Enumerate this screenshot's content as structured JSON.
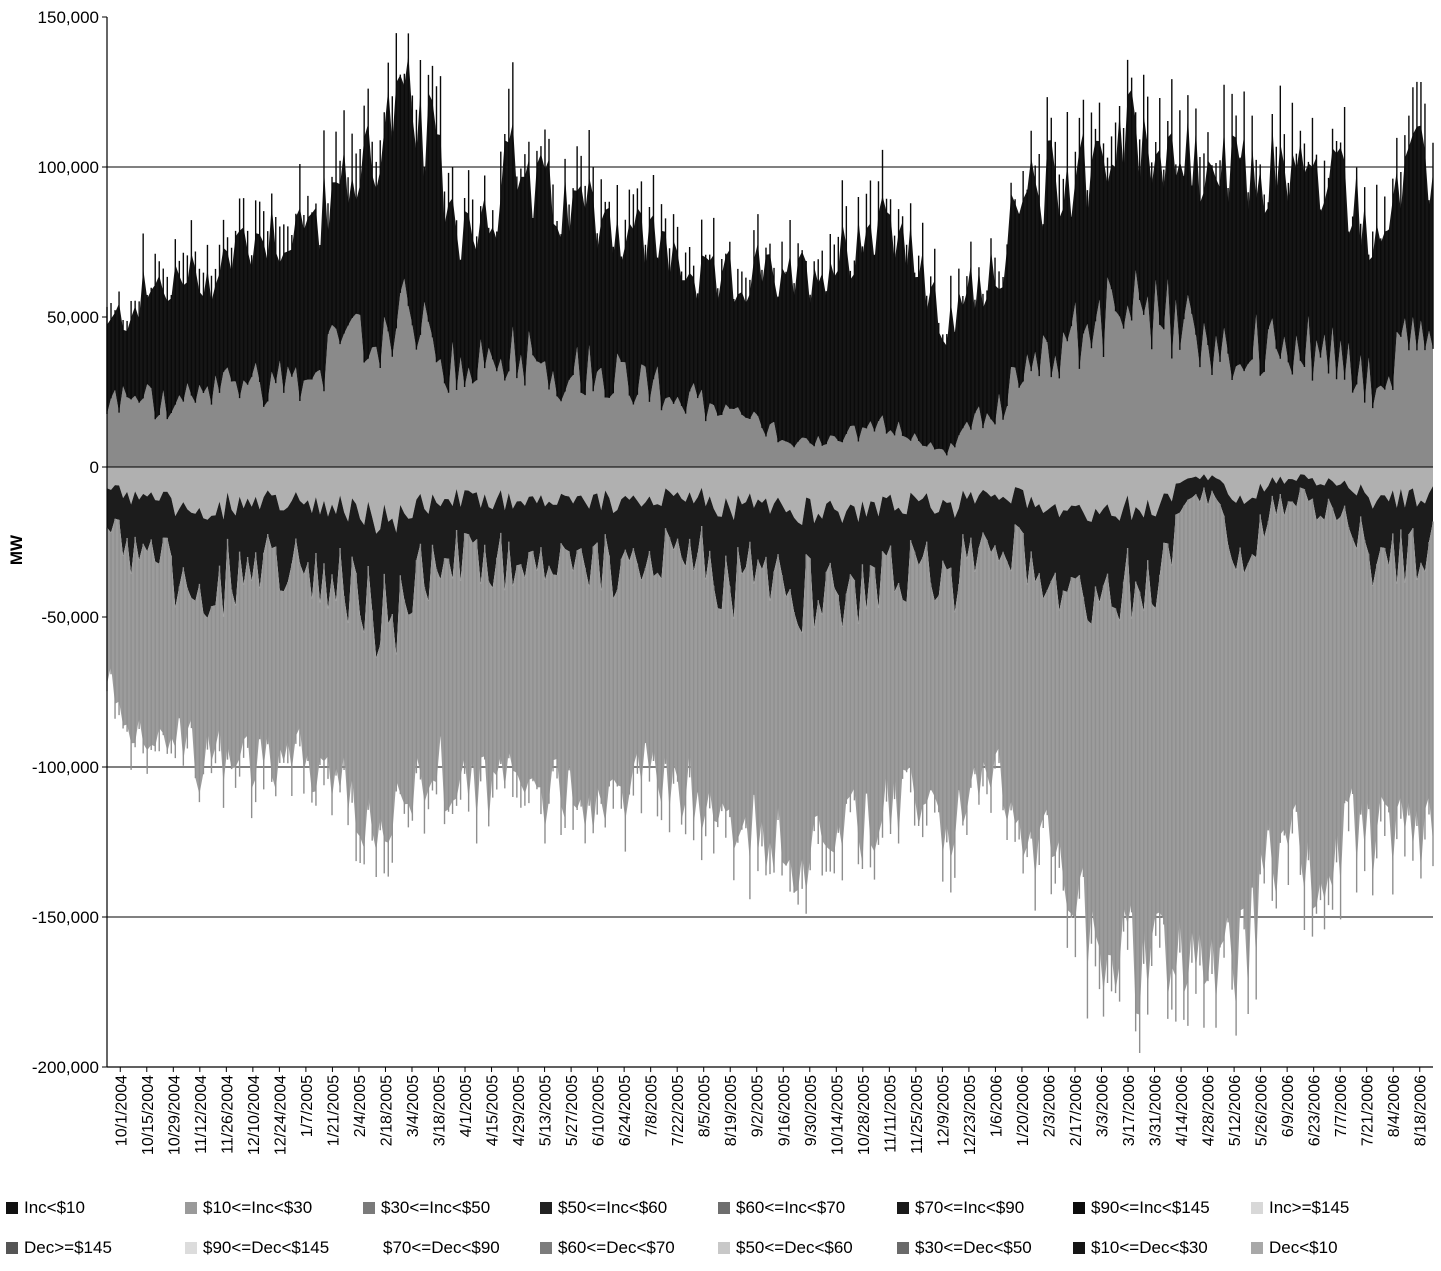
{
  "chart_data": {
    "type": "area",
    "title": "",
    "xlabel": "",
    "ylabel": "MW",
    "ylim": [
      -200000,
      150000
    ],
    "yticks": [
      150000,
      100000,
      50000,
      0,
      -50000,
      -100000,
      -150000,
      -200000
    ],
    "ytick_labels": [
      "150,000",
      "100,000",
      "50,000",
      "0",
      "-50,000",
      "-100,000",
      "-150,000",
      "-200,000"
    ],
    "gridlines_y": [
      100000,
      -100000,
      -150000
    ],
    "x_labels": [
      "10/1/2004",
      "10/15/2004",
      "10/29/2004",
      "11/12/2004",
      "11/26/2004",
      "12/10/2004",
      "12/24/2004",
      "1/7/2005",
      "1/21/2005",
      "2/4/2005",
      "2/18/2005",
      "3/4/2005",
      "3/18/2005",
      "4/1/2005",
      "4/15/2005",
      "4/29/2005",
      "5/13/2005",
      "5/27/2005",
      "6/10/2005",
      "6/24/2005",
      "7/8/2005",
      "7/22/2005",
      "8/5/2005",
      "8/19/2005",
      "9/2/2005",
      "9/16/2005",
      "9/30/2005",
      "10/14/2005",
      "10/28/2005",
      "11/11/2005",
      "11/25/2005",
      "12/9/2005",
      "12/23/2005",
      "1/6/2006",
      "1/20/2006",
      "2/3/2006",
      "2/17/2006",
      "3/3/2006",
      "3/17/2006",
      "3/31/2006",
      "4/14/2006",
      "4/28/2006",
      "5/12/2006",
      "5/26/2006",
      "6/9/2006",
      "6/23/2006",
      "7/7/2006",
      "7/21/2006",
      "8/4/2006",
      "8/18/2006"
    ],
    "envelope": {
      "positive_top": [
        45000,
        55000,
        60000,
        62000,
        65000,
        75000,
        80000,
        78000,
        85000,
        95000,
        110000,
        120000,
        105000,
        80000,
        85000,
        100000,
        90000,
        85000,
        88000,
        80000,
        75000,
        70000,
        60000,
        62000,
        65000,
        60000,
        65000,
        70000,
        80000,
        85000,
        65000,
        45000,
        60000,
        70000,
        90000,
        95000,
        100000,
        105000,
        110000,
        108000,
        100000,
        98000,
        95000,
        100000,
        98000,
        95000,
        92000,
        75000,
        95000,
        100000
      ],
      "negative_bottom": [
        -70000,
        -85000,
        -90000,
        -95000,
        -100000,
        -95000,
        -98000,
        -95000,
        -100000,
        -110000,
        -125000,
        -115000,
        -100000,
        -105000,
        -110000,
        -105000,
        -110000,
        -105000,
        -110000,
        -108000,
        -100000,
        -105000,
        -110000,
        -115000,
        -120000,
        -125000,
        -130000,
        -125000,
        -120000,
        -115000,
        -110000,
        -120000,
        -110000,
        -100000,
        -120000,
        -130000,
        -150000,
        -160000,
        -165000,
        -170000,
        -155000,
        -160000,
        -165000,
        -130000,
        -125000,
        -140000,
        -120000,
        -125000,
        -120000,
        -120000
      ],
      "inc_dark_bottom": [
        20000,
        25000,
        20000,
        22000,
        25000,
        30000,
        28000,
        30000,
        35000,
        40000,
        45000,
        50000,
        40000,
        30000,
        35000,
        40000,
        35000,
        30000,
        35000,
        30000,
        28000,
        25000,
        20000,
        18000,
        15000,
        10000,
        8000,
        10000,
        12000,
        15000,
        8000,
        5000,
        15000,
        20000,
        35000,
        40000,
        45000,
        50000,
        55000,
        50000,
        45000,
        40000,
        38000,
        42000,
        40000,
        38000,
        35000,
        25000,
        40000,
        45000
      ],
      "dec_dark_top": [
        -15000,
        -30000,
        -35000,
        -40000,
        -38000,
        -35000,
        -30000,
        -32000,
        -35000,
        -40000,
        -50000,
        -45000,
        -35000,
        -30000,
        -35000,
        -30000,
        -28000,
        -30000,
        -35000,
        -32000,
        -30000,
        -25000,
        -30000,
        -40000,
        -35000,
        -40000,
        -45000,
        -40000,
        -45000,
        -40000,
        -35000,
        -40000,
        -30000,
        -25000,
        -30000,
        -35000,
        -40000,
        -45000,
        -40000,
        -35000,
        -10000,
        -10000,
        -35000,
        -15000,
        -10000,
        -15000,
        -20000,
        -35000,
        -30000,
        -25000
      ]
    },
    "series": [
      {
        "name": "Inc<$10",
        "color": "#111111"
      },
      {
        "name": "$10<=Inc<$30",
        "color": "#9a9a9a"
      },
      {
        "name": "$30<=Inc<$50",
        "color": "#7a7a7a"
      },
      {
        "name": "$50<=Inc<$60",
        "color": "#222222"
      },
      {
        "name": "$60<=Inc<$70",
        "color": "#6e6e6e"
      },
      {
        "name": "$70<=Inc<$90",
        "color": "#1a1a1a"
      },
      {
        "name": "$90<=Inc<$145",
        "color": "#0c0c0c"
      },
      {
        "name": "Inc>=$145",
        "color": "#d8d8d8"
      },
      {
        "name": "Dec>=$145",
        "color": "#555555"
      },
      {
        "name": "$90<=Dec<$145",
        "color": "#dcdcdc"
      },
      {
        "name": "$70<=Dec<$90",
        "color": "#ffffff"
      },
      {
        "name": "$60<=Dec<$70",
        "color": "#7c7c7c"
      },
      {
        "name": "$50<=Dec<$60",
        "color": "#c8c8c8"
      },
      {
        "name": "$30<=Dec<$50",
        "color": "#6a6a6a"
      },
      {
        "name": "$10<=Dec<$30",
        "color": "#151515"
      },
      {
        "name": "Dec<$10",
        "color": "#a8a8a8"
      }
    ]
  }
}
